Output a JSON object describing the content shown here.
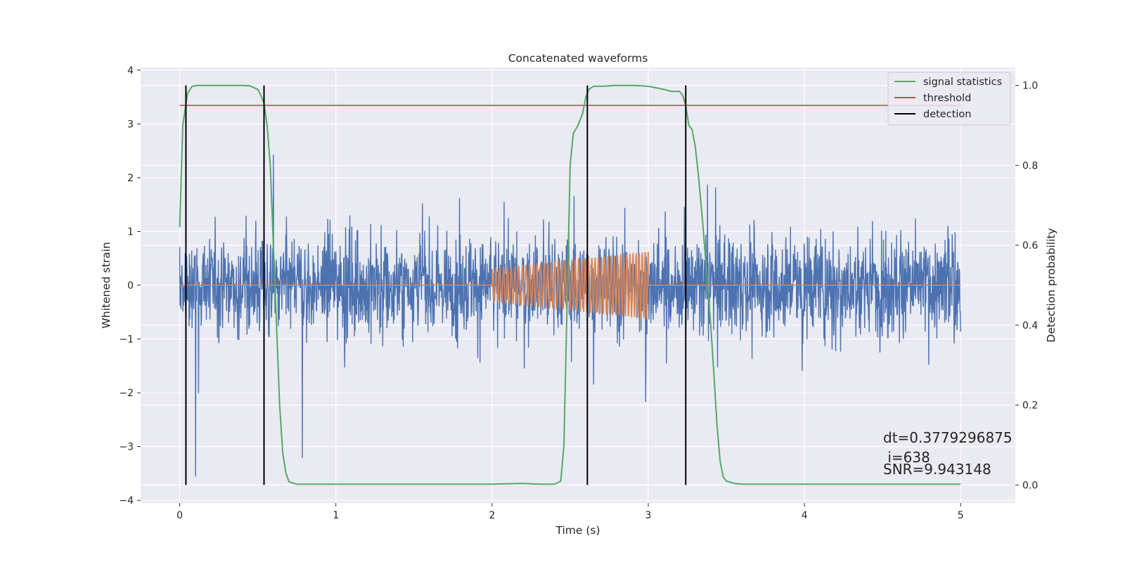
{
  "chart_data": {
    "type": "line",
    "title": "Concatenated waveforms",
    "xlabel": "Time (s)",
    "ylabel": "Whitened strain",
    "y2label": "Detection probability",
    "xlim": [
      -0.25,
      5.35
    ],
    "ylim": [
      -4.05,
      4.05
    ],
    "y2lim": [
      -0.045,
      1.045
    ],
    "x_ticks": [
      0,
      1,
      2,
      3,
      4,
      5
    ],
    "x_tick_labels": [
      "0",
      "1",
      "2",
      "3",
      "4",
      "5"
    ],
    "y_ticks": [
      -4,
      -3,
      -2,
      -1,
      0,
      1,
      2,
      3,
      4
    ],
    "y_tick_labels": [
      "−4",
      "−3",
      "−2",
      "−1",
      "0",
      "1",
      "2",
      "3",
      "4"
    ],
    "y2_ticks": [
      0.0,
      0.2,
      0.4,
      0.6,
      0.8,
      1.0
    ],
    "y2_tick_labels": [
      "0.0",
      "0.2",
      "0.4",
      "0.6",
      "0.8",
      "1.0"
    ],
    "grid": true,
    "legend_position": "top-right",
    "legend": [
      {
        "label": "signal statistics",
        "color": "#55a868"
      },
      {
        "label": "threshold",
        "color": "#c44e52"
      },
      {
        "label": "detection",
        "color": "#000000"
      }
    ],
    "colors": {
      "noise": "#4c72b0",
      "waveform": "#dd8452",
      "statistic": "#55a868",
      "threshold": "#c44e52",
      "detection": "#000000"
    },
    "noise": {
      "x_range": [
        0,
        5
      ],
      "typical_abs_envelope": 0.75,
      "max": 3.72,
      "min": -3.68
    },
    "injected_waveform": {
      "x_start": 2.0,
      "x_end": 3.0,
      "amplitude_start": 0.3,
      "amplitude_end": 0.62,
      "cycles": 40
    },
    "threshold": {
      "x": [
        0,
        5
      ],
      "y": 0.95
    },
    "detections_x": [
      0.04,
      0.54,
      2.61,
      3.24
    ],
    "signal_statistics": {
      "x": [
        0.0,
        0.02,
        0.05,
        0.08,
        0.12,
        0.2,
        0.3,
        0.4,
        0.45,
        0.5,
        0.52,
        0.54,
        0.56,
        0.58,
        0.6,
        0.62,
        0.64,
        0.66,
        0.68,
        0.7,
        0.75,
        1.0,
        1.5,
        2.0,
        2.2,
        2.3,
        2.4,
        2.44,
        2.46,
        2.48,
        2.5,
        2.52,
        2.55,
        2.58,
        2.6,
        2.62,
        2.65,
        2.7,
        2.8,
        2.9,
        3.0,
        3.1,
        3.15,
        3.2,
        3.22,
        3.24,
        3.26,
        3.28,
        3.3,
        3.32,
        3.35,
        3.38,
        3.4,
        3.42,
        3.44,
        3.46,
        3.48,
        3.5,
        3.55,
        3.6,
        4.0,
        4.5,
        5.0
      ],
      "y": [
        0.645,
        0.9,
        0.98,
        0.998,
        1.0,
        1.0,
        1.0,
        1.0,
        0.999,
        0.99,
        0.975,
        0.955,
        0.9,
        0.8,
        0.6,
        0.4,
        0.2,
        0.08,
        0.03,
        0.008,
        0.002,
        0.002,
        0.002,
        0.002,
        0.004,
        0.002,
        0.002,
        0.01,
        0.1,
        0.45,
        0.8,
        0.88,
        0.9,
        0.93,
        0.97,
        0.99,
        0.998,
        0.998,
        1.0,
        1.0,
        0.998,
        0.99,
        0.985,
        0.985,
        0.975,
        0.95,
        0.9,
        0.89,
        0.85,
        0.78,
        0.65,
        0.5,
        0.4,
        0.28,
        0.15,
        0.06,
        0.02,
        0.01,
        0.004,
        0.002,
        0.002,
        0.002,
        0.002
      ]
    },
    "annotations": [
      "dt=0.3779296875",
      " i=638",
      "SNR=9.943148"
    ]
  }
}
